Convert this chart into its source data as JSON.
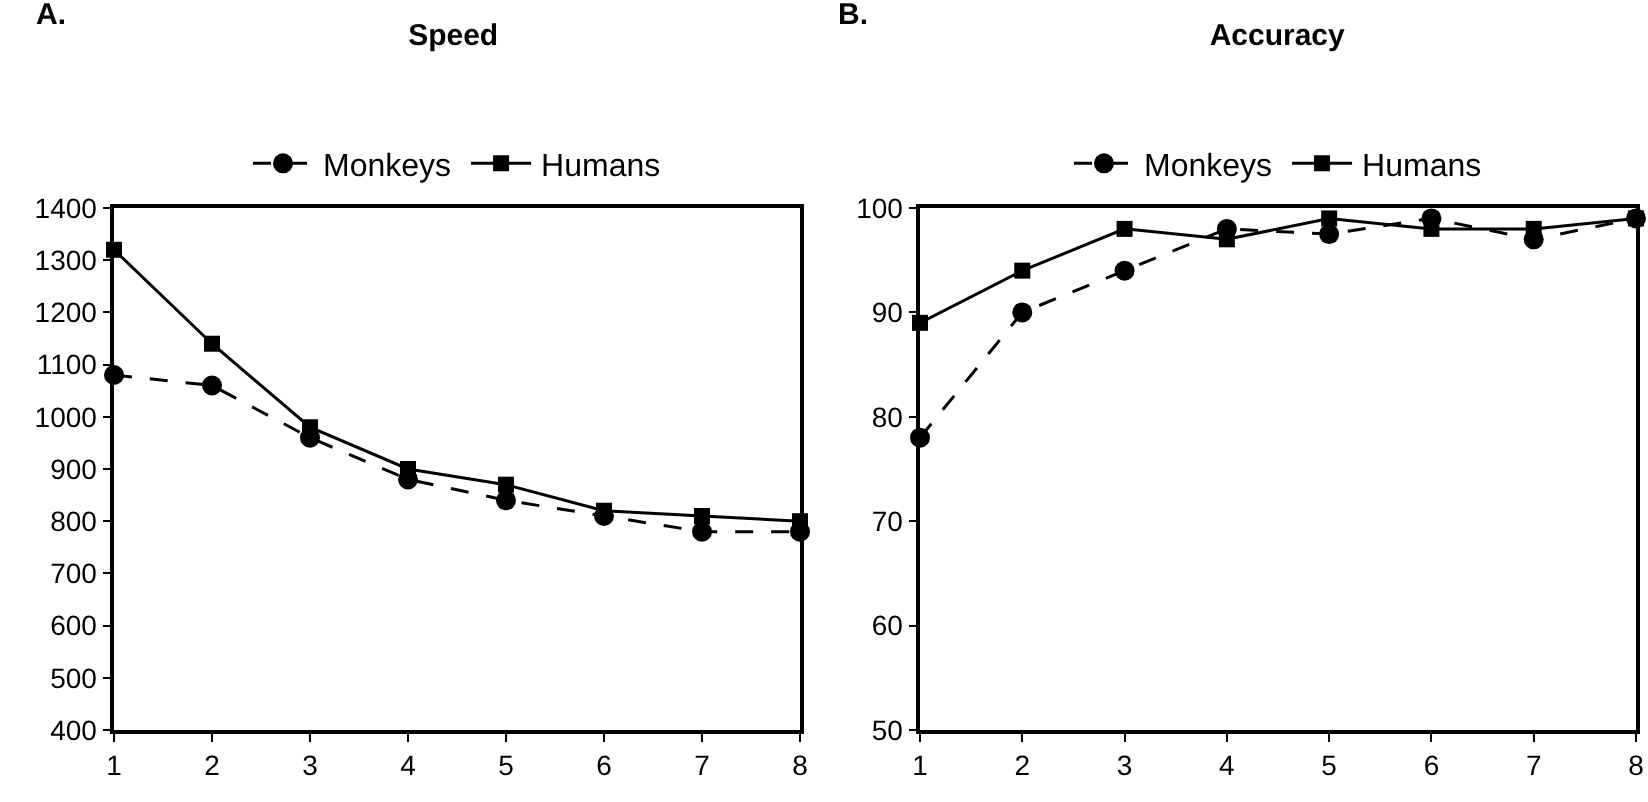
{
  "chart_data": [
    {
      "type": "line",
      "title": "Speed",
      "annotations": [
        "A."
      ],
      "x": [
        1,
        2,
        3,
        4,
        5,
        6,
        7,
        8
      ],
      "xlim": [
        1,
        8
      ],
      "xticks": [
        1,
        2,
        3,
        4,
        5,
        6,
        7,
        8
      ],
      "ylim": [
        400,
        1400
      ],
      "yticks": [
        400,
        500,
        600,
        700,
        800,
        900,
        1000,
        1100,
        1200,
        1300,
        1400
      ],
      "grid": false,
      "legend": "top",
      "series": [
        {
          "name": "Monkeys",
          "color": "#000000",
          "marker": "circle",
          "line_style": "dashed",
          "values": [
            1080,
            1060,
            960,
            880,
            840,
            810,
            780,
            780
          ]
        },
        {
          "name": "Humans",
          "color": "#000000",
          "marker": "square",
          "line_style": "solid",
          "values": [
            1320,
            1140,
            980,
            900,
            870,
            820,
            810,
            800
          ]
        }
      ]
    },
    {
      "type": "line",
      "title": "Accuracy",
      "annotations": [
        "B."
      ],
      "x": [
        1,
        2,
        3,
        4,
        5,
        6,
        7,
        8
      ],
      "xlim": [
        1,
        8
      ],
      "xticks": [
        1,
        2,
        3,
        4,
        5,
        6,
        7,
        8
      ],
      "ylim": [
        50,
        100
      ],
      "yticks": [
        50,
        60,
        70,
        80,
        90,
        100
      ],
      "grid": false,
      "legend": "top",
      "series": [
        {
          "name": "Monkeys",
          "color": "#000000",
          "marker": "circle",
          "line_style": "dashed",
          "values": [
            78,
            90,
            94,
            98,
            97.5,
            99,
            97,
            99
          ]
        },
        {
          "name": "Humans",
          "color": "#000000",
          "marker": "square",
          "line_style": "solid",
          "values": [
            89,
            94,
            98,
            97,
            99,
            98,
            98,
            99
          ]
        }
      ]
    }
  ]
}
